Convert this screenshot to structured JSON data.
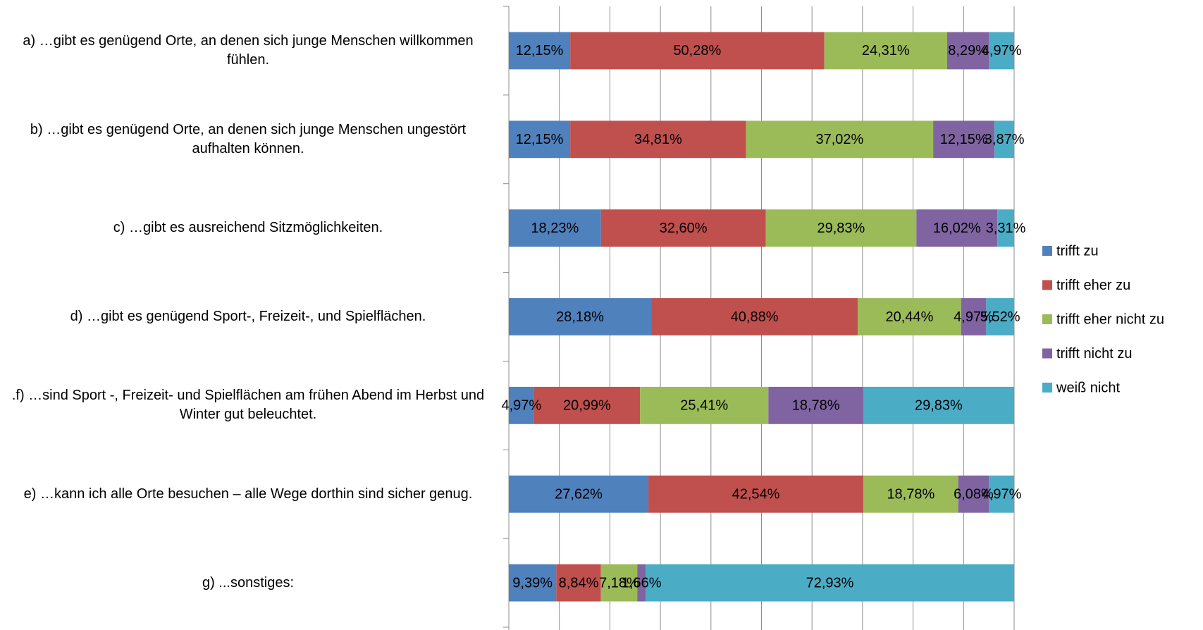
{
  "chart_data": {
    "type": "stacked-bar-horizontal",
    "categories": [
      "a) …gibt es genügend Orte, an denen sich junge Menschen willkommen fühlen.",
      "b) …gibt es genügend Orte, an denen sich junge Menschen ungestört aufhalten können.",
      "c) …gibt es ausreichend Sitzmöglichkeiten.",
      "d) …gibt es genügend Sport-, Freizeit-, und Spielflächen.",
      ".f) …sind Sport -, Freizeit- und Spielflächen am frühen Abend im Herbst und Winter gut beleuchtet.",
      "e) …kann ich alle Orte besuchen – alle Wege dorthin sind sicher genug.",
      "g) ...sonstiges:"
    ],
    "series": [
      {
        "name": "trifft zu",
        "color": "#4f81bd",
        "values": [
          12.15,
          12.15,
          18.23,
          28.18,
          4.97,
          27.62,
          9.39
        ],
        "value_labels": [
          "12,15%",
          "12,15%",
          "18,23%",
          "28,18%",
          "4,97%",
          "27,62%",
          "9,39%"
        ]
      },
      {
        "name": "trifft eher zu",
        "color": "#c0504d",
        "values": [
          50.28,
          34.81,
          32.6,
          40.88,
          20.99,
          42.54,
          8.84
        ],
        "value_labels": [
          "50,28%",
          "34,81%",
          "32,60%",
          "40,88%",
          "20,99%",
          "42,54%",
          "8,84%"
        ]
      },
      {
        "name": "trifft eher nicht zu",
        "color": "#9bbb59",
        "values": [
          24.31,
          37.02,
          29.83,
          20.44,
          25.41,
          18.78,
          7.18
        ],
        "value_labels": [
          "24,31%",
          "37,02%",
          "29,83%",
          "20,44%",
          "25,41%",
          "18,78%",
          "7,18%"
        ]
      },
      {
        "name": "trifft nicht zu",
        "color": "#8064a2",
        "values": [
          8.29,
          12.15,
          16.02,
          4.97,
          18.78,
          6.08,
          1.66
        ],
        "value_labels": [
          "8,29%",
          "12,15%",
          "16,02%",
          "4,97%",
          "18,78%",
          "6,08%",
          "1,66%"
        ]
      },
      {
        "name": "weiß nicht",
        "color": "#4bacc6",
        "values": [
          4.97,
          3.87,
          3.31,
          5.52,
          29.83,
          4.97,
          72.93
        ],
        "value_labels": [
          "4,97%",
          "3,87%",
          "3,31%",
          "5,52%",
          "29,83%",
          "4,97%",
          "72,93%"
        ]
      }
    ],
    "xlim": [
      0,
      100
    ],
    "xticks": [
      0,
      10,
      20,
      30,
      40,
      50,
      60,
      70,
      80,
      90,
      100
    ],
    "grid": true,
    "legend": "right"
  }
}
